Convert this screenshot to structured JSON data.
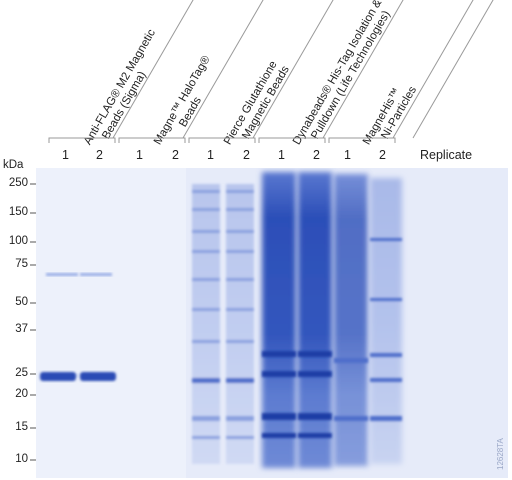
{
  "header": {
    "kda_label": "kDa",
    "replicate_label": "Replicate"
  },
  "groups": [
    {
      "line1": "Anti-FLAG® M2 Magnetic",
      "line2": "Beads (Sigma)"
    },
    {
      "line1": "Magne™ HaloTag®",
      "line2": "Beads"
    },
    {
      "line1": "Pierce Glutathione",
      "line2": "Magnetic Beads"
    },
    {
      "line1": "Dynabeads® His-Tag Isolation &",
      "line2": "Pulldown (Life Technologies)"
    },
    {
      "line1": "MagneHis™",
      "line2": "Ni-Particles"
    }
  ],
  "lanes": [
    "1",
    "2",
    "1",
    "2",
    "1",
    "2",
    "1",
    "2",
    "1",
    "2"
  ],
  "markers": [
    "250",
    "150",
    "100",
    "75",
    "50",
    "37",
    "25",
    "20",
    "15",
    "10"
  ],
  "figure_code": "12628TA",
  "colors": {
    "gel_background": "#ecf0fb",
    "band_dark": "#2a4bb5",
    "band_light": "#7f98dc",
    "bracket": "#9a9a9a"
  }
}
